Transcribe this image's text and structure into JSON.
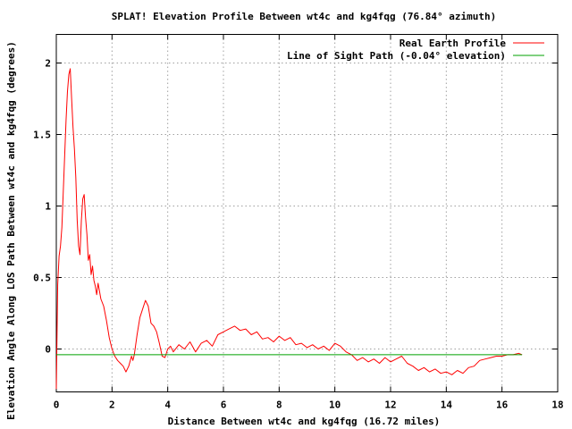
{
  "chart_data": {
    "type": "line",
    "title": "SPLAT! Elevation Profile Between wt4c and kg4fqg (76.84° azimuth)",
    "xlabel": "Distance Between wt4c and kg4fqg (16.72 miles)",
    "ylabel": "Elevation Angle Along LOS Path Between wt4c and kg4fqg (degrees)",
    "xlim": [
      0,
      18
    ],
    "ylim": [
      -0.3,
      2.2
    ],
    "x_ticks": [
      0,
      2,
      4,
      6,
      8,
      10,
      12,
      14,
      16,
      18
    ],
    "x_tick_labels": [
      "0",
      "2",
      "4",
      "6",
      "8",
      "10",
      "12",
      "14",
      "16",
      "18"
    ],
    "y_ticks": [
      0,
      0.5,
      1,
      1.5,
      2
    ],
    "y_tick_labels": [
      "0",
      "0.5",
      "1",
      "1.5",
      "2"
    ],
    "grid": true,
    "legend_position": "top-right",
    "series": [
      {
        "name": "Real Earth Profile",
        "color": "#ff0000",
        "x": [
          0.0,
          0.05,
          0.1,
          0.15,
          0.2,
          0.25,
          0.3,
          0.35,
          0.4,
          0.45,
          0.5,
          0.55,
          0.6,
          0.65,
          0.7,
          0.75,
          0.8,
          0.85,
          0.9,
          0.95,
          1.0,
          1.05,
          1.1,
          1.15,
          1.2,
          1.25,
          1.3,
          1.35,
          1.4,
          1.45,
          1.5,
          1.6,
          1.7,
          1.8,
          1.9,
          2.0,
          2.1,
          2.2,
          2.3,
          2.4,
          2.5,
          2.6,
          2.7,
          2.75,
          2.8,
          2.9,
          3.0,
          3.1,
          3.2,
          3.3,
          3.4,
          3.5,
          3.6,
          3.7,
          3.8,
          3.9,
          4.0,
          4.1,
          4.2,
          4.4,
          4.6,
          4.8,
          5.0,
          5.2,
          5.4,
          5.6,
          5.8,
          6.0,
          6.2,
          6.4,
          6.6,
          6.8,
          7.0,
          7.2,
          7.4,
          7.6,
          7.8,
          8.0,
          8.2,
          8.4,
          8.6,
          8.8,
          9.0,
          9.2,
          9.4,
          9.6,
          9.8,
          10.0,
          10.2,
          10.4,
          10.6,
          10.8,
          11.0,
          11.2,
          11.4,
          11.6,
          11.8,
          12.0,
          12.2,
          12.4,
          12.6,
          12.8,
          13.0,
          13.2,
          13.4,
          13.6,
          13.8,
          14.0,
          14.2,
          14.4,
          14.6,
          14.8,
          15.0,
          15.2,
          15.4,
          15.6,
          15.8,
          16.0,
          16.2,
          16.4,
          16.6,
          16.72
        ],
        "y": [
          -0.28,
          0.45,
          0.65,
          0.72,
          0.85,
          1.1,
          1.35,
          1.6,
          1.8,
          1.92,
          1.96,
          1.75,
          1.55,
          1.4,
          1.2,
          0.9,
          0.72,
          0.66,
          0.9,
          1.05,
          1.08,
          0.92,
          0.8,
          0.62,
          0.66,
          0.52,
          0.58,
          0.48,
          0.44,
          0.38,
          0.46,
          0.35,
          0.3,
          0.2,
          0.08,
          0.0,
          -0.05,
          -0.08,
          -0.1,
          -0.12,
          -0.16,
          -0.12,
          -0.05,
          -0.08,
          -0.04,
          0.1,
          0.22,
          0.28,
          0.34,
          0.3,
          0.18,
          0.16,
          0.12,
          0.04,
          -0.05,
          -0.06,
          0.0,
          0.02,
          -0.02,
          0.03,
          0.0,
          0.05,
          -0.02,
          0.04,
          0.06,
          0.02,
          0.1,
          0.12,
          0.14,
          0.16,
          0.13,
          0.14,
          0.1,
          0.12,
          0.07,
          0.08,
          0.05,
          0.09,
          0.06,
          0.08,
          0.03,
          0.04,
          0.01,
          0.03,
          0.0,
          0.02,
          -0.01,
          0.04,
          0.02,
          -0.02,
          -0.04,
          -0.08,
          -0.06,
          -0.09,
          -0.07,
          -0.1,
          -0.06,
          -0.09,
          -0.07,
          -0.05,
          -0.1,
          -0.12,
          -0.15,
          -0.13,
          -0.16,
          -0.14,
          -0.17,
          -0.16,
          -0.18,
          -0.15,
          -0.17,
          -0.13,
          -0.12,
          -0.08,
          -0.07,
          -0.06,
          -0.05,
          -0.05,
          -0.04,
          -0.04,
          -0.03,
          -0.04
        ]
      },
      {
        "name": "Line of Sight Path (-0.04° elevation)",
        "color": "#00a000",
        "x": [
          0,
          16.72
        ],
        "y": [
          -0.04,
          -0.04
        ]
      }
    ]
  }
}
